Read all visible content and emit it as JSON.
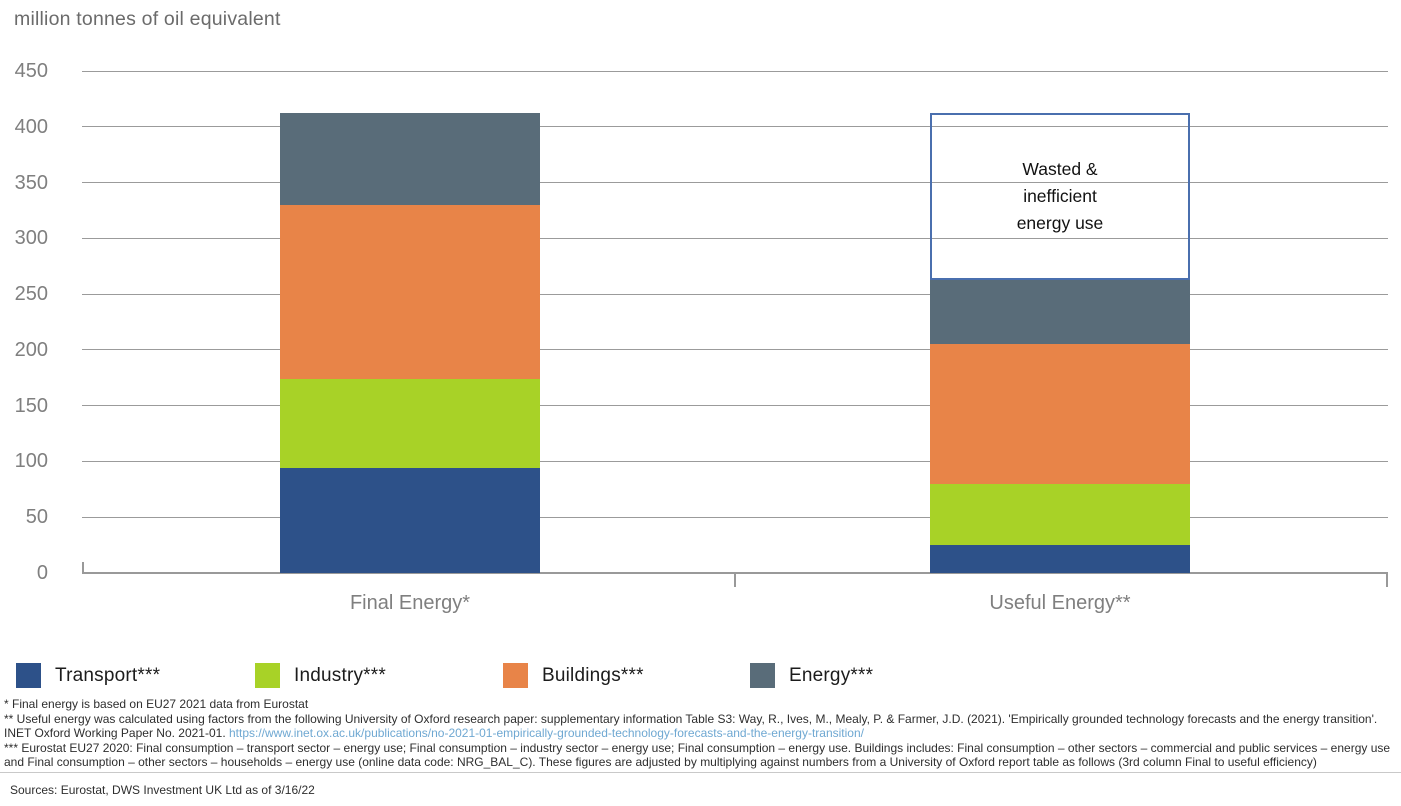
{
  "title": "million tonnes of oil equivalent",
  "chart_data": {
    "type": "bar",
    "stacked": true,
    "title": "million tonnes of oil equivalent",
    "categories": [
      "Final Energy*",
      "Useful Energy**"
    ],
    "series": [
      {
        "name": "Transport***",
        "color": "#2d5189",
        "values": [
          94,
          25
        ]
      },
      {
        "name": "Industry***",
        "color": "#a8d227",
        "values": [
          80,
          55
        ]
      },
      {
        "name": "Buildings***",
        "color": "#e88448",
        "values": [
          156,
          125
        ]
      },
      {
        "name": "Energy***",
        "color": "#596c79",
        "values": [
          82,
          58
        ]
      }
    ],
    "totals": [
      412,
      263
    ],
    "annotation_box": {
      "label": "Wasted & inefficient energy use",
      "label_lines": [
        "Wasted &",
        "inefficient",
        "energy use"
      ],
      "category_index": 1,
      "from": 263,
      "to": 412,
      "border_color": "#4a6fae"
    },
    "xlabel": "",
    "ylabel": "million tonnes of oil equivalent",
    "ylim": [
      0,
      450
    ],
    "ytick_step": 50,
    "grid": true,
    "legend_position": "bottom"
  },
  "footnotes": {
    "line1": "* Final energy is based on EU27 2021 data from Eurostat",
    "line2_text": "** Useful energy was calculated using factors from the following University of Oxford research paper: supplementary information Table S3: Way, R., Ives, M., Mealy, P. & Farmer, J.D. (2021). 'Empirically grounded technology forecasts and the energy transition'. INET Oxford Working Paper No. 2021-01. ",
    "line2_link": "https://www.inet.ox.ac.uk/publications/no-2021-01-empirically-grounded-technology-forecasts-and-the-energy-transition/",
    "line3": "*** Eurostat EU27 2020: Final consumption – transport sector – energy use; Final consumption – industry sector – energy use; Final consumption – energy use. Buildings includes: Final consumption – other sectors – commercial and public services – energy use and Final consumption – other sectors – households – energy use (online data code: NRG_BAL_C). These figures are adjusted by multiplying against numbers from a University of Oxford report table as follows (3rd column Final to useful efficiency)",
    "sources": "Sources: Eurostat, DWS Investment UK Ltd as of 3/16/22"
  }
}
